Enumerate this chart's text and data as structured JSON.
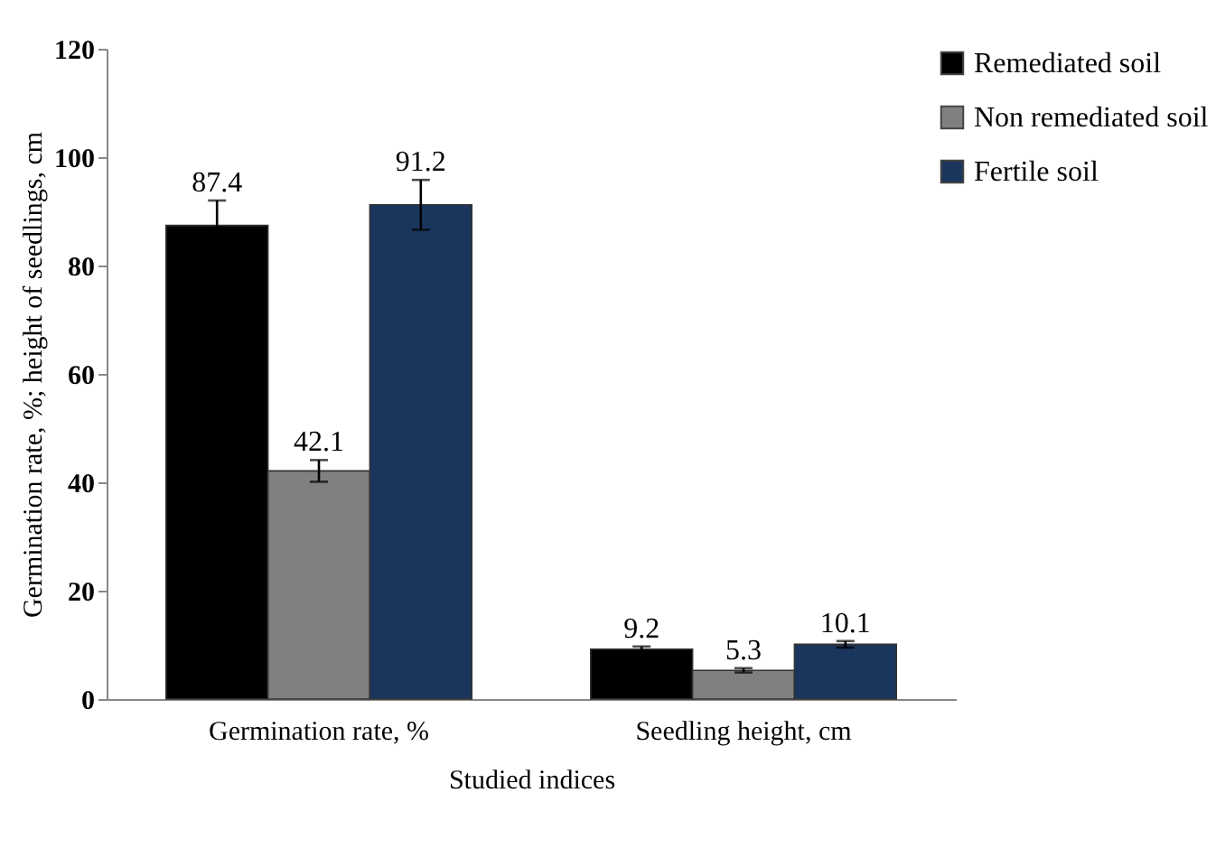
{
  "chart_data": {
    "type": "bar",
    "xlabel": "Studied indices",
    "ylabel": "Germination rate, %; height of seedlings, cm",
    "categories": [
      "Germination rate, %",
      "Seedling height, cm"
    ],
    "series": [
      {
        "name": "Remediated soil",
        "color": "#000000",
        "values": [
          87.4,
          9.2
        ],
        "errors": [
          4.6,
          0.5
        ]
      },
      {
        "name": "Non remediated soil",
        "color": "#808080",
        "values": [
          42.1,
          5.3
        ],
        "errors": [
          2,
          0.4
        ]
      },
      {
        "name": "Fertile soil",
        "color": "#1b365d",
        "values": [
          91.2,
          10.1
        ],
        "errors": [
          4.6,
          0.6
        ]
      }
    ],
    "ylim": [
      0,
      120
    ],
    "yticks": [
      0,
      20,
      40,
      60,
      80,
      100,
      120
    ],
    "data_labels": true,
    "grid": false,
    "legend": "top right"
  }
}
